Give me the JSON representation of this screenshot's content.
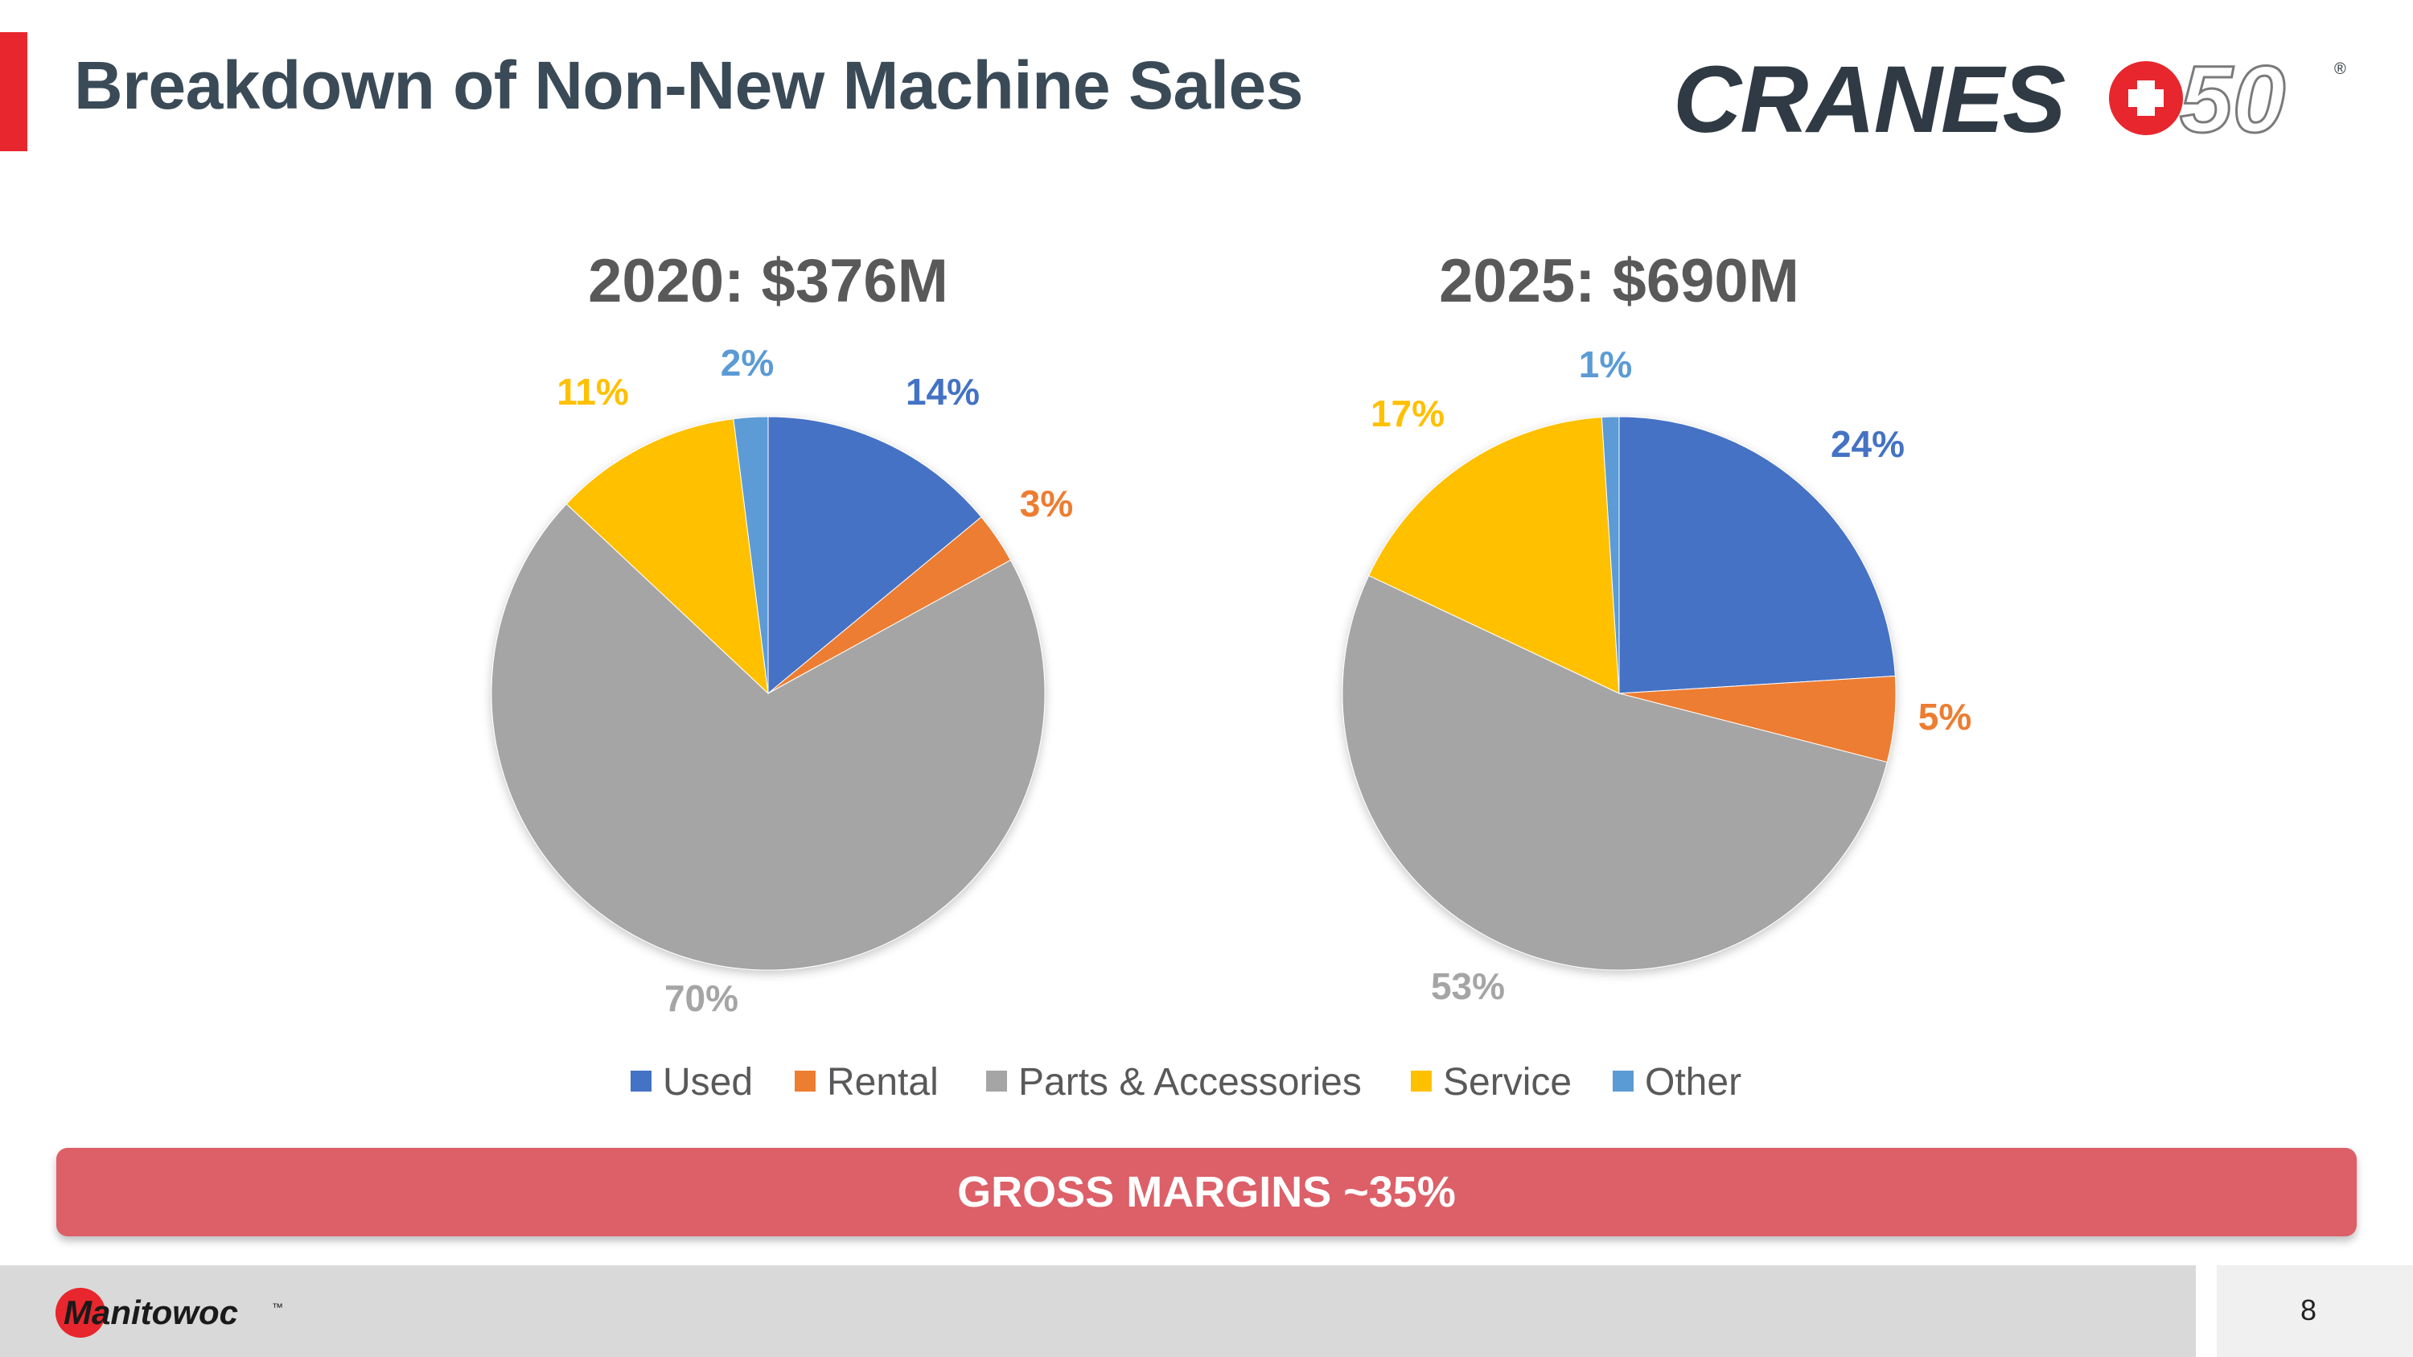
{
  "page": {
    "title": "Breakdown of Non-New Machine Sales",
    "page_number": "8"
  },
  "brand_logo": {
    "text": "CRANES",
    "number": "50",
    "registered_mark": "®"
  },
  "company_logo": {
    "text": "Manitowoc",
    "trademark": "™"
  },
  "banner": {
    "text": "GROSS MARGINS ~35%"
  },
  "colors": {
    "used": "#4472c4",
    "rental": "#ed7d31",
    "parts": "#a5a5a5",
    "service": "#ffc000",
    "other": "#5b9bd5",
    "accent_red": "#e8262d",
    "banner": "#dd5f68",
    "title": "#3a4a57"
  },
  "chart_data": {
    "type": "pie",
    "categories": [
      "Used",
      "Rental",
      "Parts & Accessories",
      "Service",
      "Other"
    ],
    "legend_position": "bottom",
    "charts": [
      {
        "title": "2020:  $376M",
        "values": [
          14,
          3,
          70,
          11,
          2
        ],
        "labels": [
          "14%",
          "3%",
          "70%",
          "11%",
          "2%"
        ]
      },
      {
        "title": "2025:  $690M",
        "values": [
          24,
          5,
          53,
          17,
          1
        ],
        "labels": [
          "24%",
          "5%",
          "53%",
          "17%",
          "1%"
        ]
      }
    ]
  }
}
